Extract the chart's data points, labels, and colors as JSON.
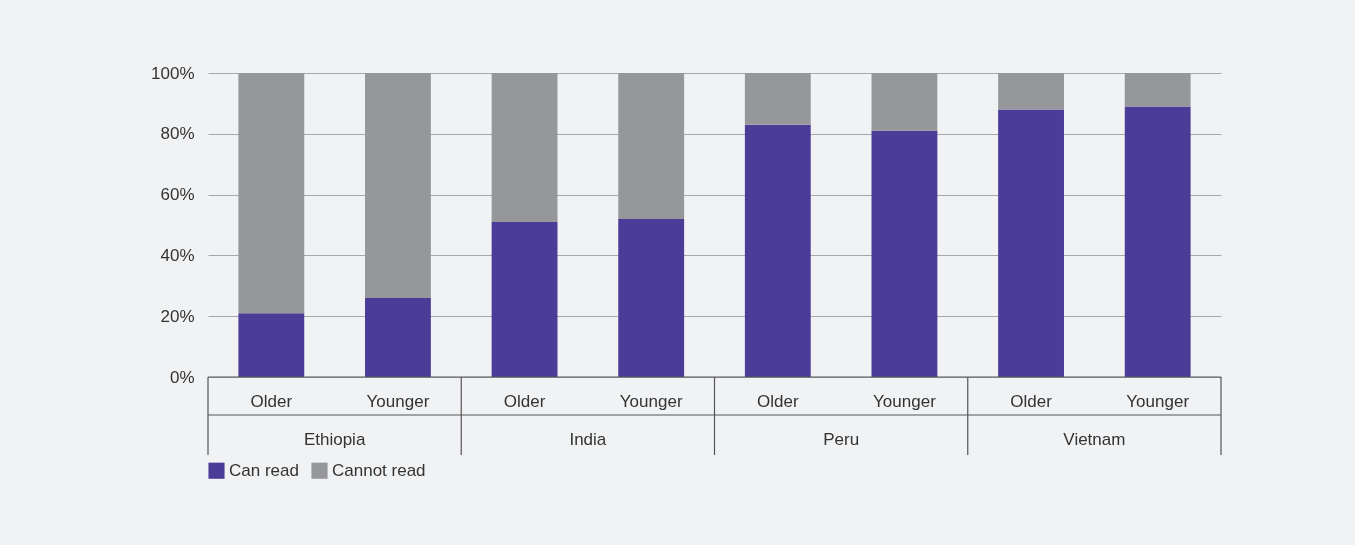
{
  "chart_data": {
    "type": "bar",
    "stacked": true,
    "categories": [
      "Older",
      "Younger",
      "Older",
      "Younger",
      "Older",
      "Younger",
      "Older",
      "Younger"
    ],
    "annotations": [
      "Ethiopia",
      "India",
      "Peru",
      "Vietnam"
    ],
    "series": [
      {
        "name": "Can read",
        "color": "#4b3c97",
        "values": [
          21,
          26,
          51,
          52,
          83,
          81,
          88,
          89
        ]
      },
      {
        "name": "Cannot read",
        "color": "#96979b",
        "values": [
          79,
          74,
          49,
          48,
          17,
          19,
          12,
          11
        ]
      }
    ],
    "ylim": [
      0,
      100
    ],
    "yticks": [
      {
        "value": 0,
        "label": "0%"
      },
      {
        "value": 20,
        "label": "20%"
      },
      {
        "value": 40,
        "label": "40%"
      },
      {
        "value": 60,
        "label": "60%"
      },
      {
        "value": 80,
        "label": "80%"
      },
      {
        "value": 100,
        "label": "100%"
      }
    ],
    "grid": "y",
    "legend": "bottom"
  }
}
